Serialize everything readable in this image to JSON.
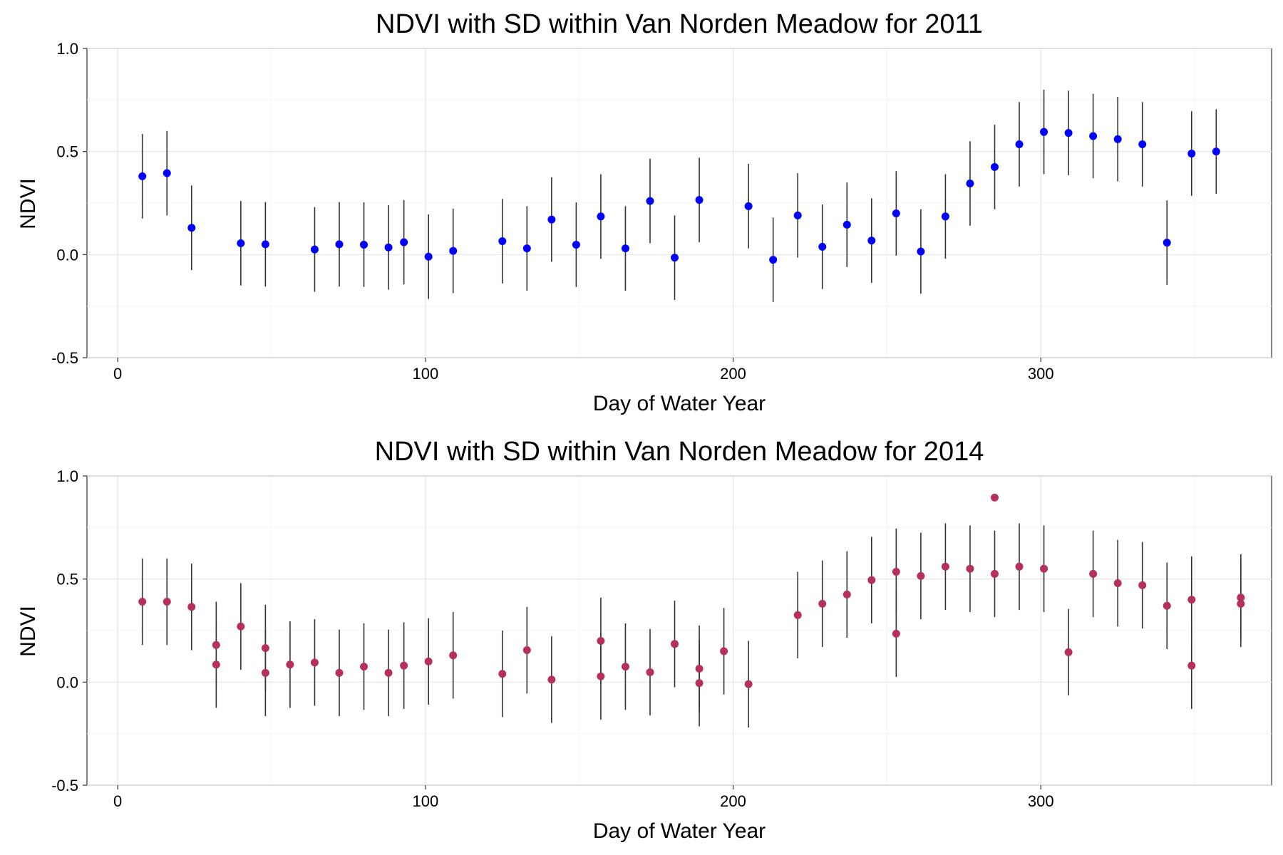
{
  "chart_data": [
    {
      "type": "scatter",
      "title": "NDVI with SD within Van Norden Meadow for 2011",
      "xlabel": "Day of Water Year",
      "ylabel": "NDVI",
      "xlim": [
        -10,
        375
      ],
      "ylim": [
        -0.5,
        1.0
      ],
      "xticks": [
        "0",
        "100",
        "200",
        "300"
      ],
      "yticks": [
        "-0.5",
        "0.0",
        "0.5",
        "1.0"
      ],
      "point_color": "#0000ff",
      "grid": true,
      "series": [
        {
          "points": [
            {
              "x": 8,
              "y": 0.38,
              "sd": 0.205
            },
            {
              "x": 16,
              "y": 0.395,
              "sd": 0.205
            },
            {
              "x": 24,
              "y": 0.13,
              "sd": 0.205
            },
            {
              "x": 40,
              "y": 0.055,
              "sd": 0.205
            },
            {
              "x": 48,
              "y": 0.05,
              "sd": 0.205
            },
            {
              "x": 64,
              "y": 0.025,
              "sd": 0.205
            },
            {
              "x": 72,
              "y": 0.05,
              "sd": 0.205
            },
            {
              "x": 80,
              "y": 0.048,
              "sd": 0.205
            },
            {
              "x": 88,
              "y": 0.035,
              "sd": 0.205
            },
            {
              "x": 93,
              "y": 0.06,
              "sd": 0.205
            },
            {
              "x": 101,
              "y": -0.01,
              "sd": 0.205
            },
            {
              "x": 109,
              "y": 0.018,
              "sd": 0.205
            },
            {
              "x": 125,
              "y": 0.065,
              "sd": 0.205
            },
            {
              "x": 133,
              "y": 0.03,
              "sd": 0.205
            },
            {
              "x": 141,
              "y": 0.17,
              "sd": 0.205
            },
            {
              "x": 149,
              "y": 0.048,
              "sd": 0.205
            },
            {
              "x": 157,
              "y": 0.185,
              "sd": 0.205
            },
            {
              "x": 165,
              "y": 0.03,
              "sd": 0.205
            },
            {
              "x": 173,
              "y": 0.26,
              "sd": 0.205
            },
            {
              "x": 181,
              "y": -0.015,
              "sd": 0.205
            },
            {
              "x": 189,
              "y": 0.265,
              "sd": 0.205
            },
            {
              "x": 205,
              "y": 0.235,
              "sd": 0.205
            },
            {
              "x": 213,
              "y": -0.025,
              "sd": 0.205
            },
            {
              "x": 221,
              "y": 0.19,
              "sd": 0.205
            },
            {
              "x": 229,
              "y": 0.038,
              "sd": 0.205
            },
            {
              "x": 237,
              "y": 0.145,
              "sd": 0.205
            },
            {
              "x": 245,
              "y": 0.068,
              "sd": 0.205
            },
            {
              "x": 253,
              "y": 0.2,
              "sd": 0.205
            },
            {
              "x": 261,
              "y": 0.015,
              "sd": 0.205
            },
            {
              "x": 269,
              "y": 0.185,
              "sd": 0.205
            },
            {
              "x": 277,
              "y": 0.345,
              "sd": 0.205
            },
            {
              "x": 285,
              "y": 0.425,
              "sd": 0.205
            },
            {
              "x": 293,
              "y": 0.535,
              "sd": 0.205
            },
            {
              "x": 301,
              "y": 0.595,
              "sd": 0.205
            },
            {
              "x": 309,
              "y": 0.59,
              "sd": 0.205
            },
            {
              "x": 317,
              "y": 0.575,
              "sd": 0.205
            },
            {
              "x": 325,
              "y": 0.56,
              "sd": 0.205
            },
            {
              "x": 333,
              "y": 0.535,
              "sd": 0.205
            },
            {
              "x": 341,
              "y": 0.058,
              "sd": 0.205
            },
            {
              "x": 349,
              "y": 0.49,
              "sd": 0.205
            },
            {
              "x": 357,
              "y": 0.5,
              "sd": 0.205
            }
          ]
        }
      ]
    },
    {
      "type": "scatter",
      "title": "NDVI with SD within Van Norden Meadow for 2014",
      "xlabel": "Day of Water Year",
      "ylabel": "NDVI",
      "xlim": [
        -10,
        375
      ],
      "ylim": [
        -0.5,
        1.0
      ],
      "xticks": [
        "0",
        "100",
        "200",
        "300"
      ],
      "yticks": [
        "-0.5",
        "0.0",
        "0.5",
        "1.0"
      ],
      "point_color": "#b5305f",
      "grid": true,
      "series": [
        {
          "points": [
            {
              "x": 8,
              "y": 0.39,
              "sd": 0.21
            },
            {
              "x": 16,
              "y": 0.39,
              "sd": 0.21
            },
            {
              "x": 24,
              "y": 0.365,
              "sd": 0.21
            },
            {
              "x": 32,
              "y": 0.18,
              "sd": 0.21
            },
            {
              "x": 32,
              "y": 0.085,
              "sd": 0.21
            },
            {
              "x": 40,
              "y": 0.27,
              "sd": 0.21
            },
            {
              "x": 48,
              "y": 0.165,
              "sd": 0.21
            },
            {
              "x": 48,
              "y": 0.045,
              "sd": 0.21
            },
            {
              "x": 56,
              "y": 0.085,
              "sd": 0.21
            },
            {
              "x": 64,
              "y": 0.095,
              "sd": 0.21
            },
            {
              "x": 72,
              "y": 0.045,
              "sd": 0.21
            },
            {
              "x": 80,
              "y": 0.075,
              "sd": 0.21
            },
            {
              "x": 88,
              "y": 0.045,
              "sd": 0.21
            },
            {
              "x": 93,
              "y": 0.08,
              "sd": 0.21
            },
            {
              "x": 101,
              "y": 0.1,
              "sd": 0.21
            },
            {
              "x": 109,
              "y": 0.13,
              "sd": 0.21
            },
            {
              "x": 125,
              "y": 0.04,
              "sd": 0.21
            },
            {
              "x": 133,
              "y": 0.155,
              "sd": 0.21
            },
            {
              "x": 141,
              "y": 0.012,
              "sd": 0.21
            },
            {
              "x": 157,
              "y": 0.2,
              "sd": 0.21
            },
            {
              "x": 157,
              "y": 0.028,
              "sd": 0.21
            },
            {
              "x": 165,
              "y": 0.075,
              "sd": 0.21
            },
            {
              "x": 173,
              "y": 0.048,
              "sd": 0.21
            },
            {
              "x": 181,
              "y": 0.185,
              "sd": 0.21
            },
            {
              "x": 189,
              "y": 0.065,
              "sd": 0.21
            },
            {
              "x": 189,
              "y": -0.005,
              "sd": 0.21
            },
            {
              "x": 197,
              "y": 0.15,
              "sd": 0.21
            },
            {
              "x": 205,
              "y": -0.01,
              "sd": 0.21
            },
            {
              "x": 221,
              "y": 0.325,
              "sd": 0.21
            },
            {
              "x": 229,
              "y": 0.38,
              "sd": 0.21
            },
            {
              "x": 237,
              "y": 0.425,
              "sd": 0.21
            },
            {
              "x": 245,
              "y": 0.495,
              "sd": 0.21
            },
            {
              "x": 253,
              "y": 0.535,
              "sd": 0.21
            },
            {
              "x": 253,
              "y": 0.235,
              "sd": 0.21
            },
            {
              "x": 261,
              "y": 0.515,
              "sd": 0.21
            },
            {
              "x": 269,
              "y": 0.56,
              "sd": 0.21
            },
            {
              "x": 277,
              "y": 0.55,
              "sd": 0.21
            },
            {
              "x": 285,
              "y": 0.895
            },
            {
              "x": 285,
              "y": 0.525,
              "sd": 0.21
            },
            {
              "x": 293,
              "y": 0.56,
              "sd": 0.21
            },
            {
              "x": 301,
              "y": 0.55,
              "sd": 0.21
            },
            {
              "x": 309,
              "y": 0.145,
              "sd": 0.21
            },
            {
              "x": 317,
              "y": 0.525,
              "sd": 0.21
            },
            {
              "x": 325,
              "y": 0.48,
              "sd": 0.21
            },
            {
              "x": 333,
              "y": 0.47,
              "sd": 0.21
            },
            {
              "x": 341,
              "y": 0.37,
              "sd": 0.21
            },
            {
              "x": 349,
              "y": 0.4,
              "sd": 0.21
            },
            {
              "x": 349,
              "y": 0.08,
              "sd": 0.21
            },
            {
              "x": 365,
              "y": 0.41,
              "sd": 0.21
            },
            {
              "x": 365,
              "y": 0.38,
              "sd": 0.21
            }
          ]
        }
      ]
    }
  ]
}
